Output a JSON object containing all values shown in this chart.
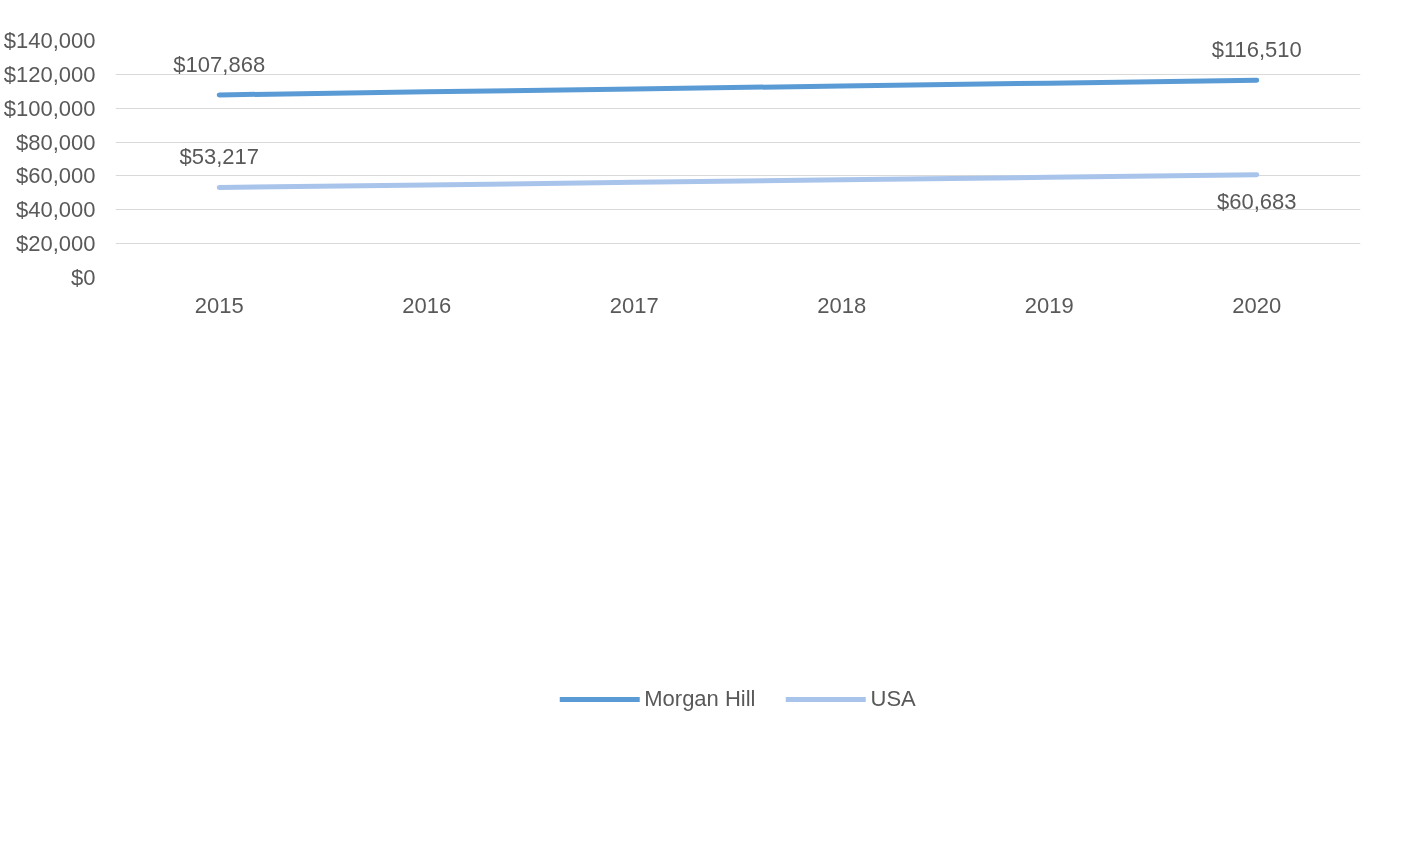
{
  "chart_data": {
    "type": "line",
    "categories": [
      "2015",
      "2016",
      "2017",
      "2018",
      "2019",
      "2020"
    ],
    "series": [
      {
        "name": "Morgan Hill",
        "color": "#5b9bd5",
        "values": [
          107868,
          109700,
          111400,
          113100,
          114800,
          116510
        ],
        "value_labels": [
          "$107,868",
          null,
          null,
          null,
          null,
          "$116,510"
        ]
      },
      {
        "name": "USA",
        "color": "#a9c4eb",
        "values": [
          53217,
          54700,
          56200,
          57700,
          59200,
          60683
        ],
        "value_labels": [
          "$53,217",
          null,
          null,
          null,
          null,
          "$60,683"
        ]
      }
    ],
    "ylim": [
      0,
      140000
    ],
    "yticks": [
      {
        "value": 0,
        "label": "$0"
      },
      {
        "value": 20000,
        "label": "$20,000"
      },
      {
        "value": 40000,
        "label": "$40,000"
      },
      {
        "value": 60000,
        "label": "$60,000"
      },
      {
        "value": 80000,
        "label": "$80,000"
      },
      {
        "value": 100000,
        "label": "$100,000"
      },
      {
        "value": 120000,
        "label": "$120,000"
      },
      {
        "value": 140000,
        "label": "$140,000"
      }
    ],
    "grid": "y",
    "legend": "bottom",
    "marker": "none",
    "line_style": "solid"
  }
}
